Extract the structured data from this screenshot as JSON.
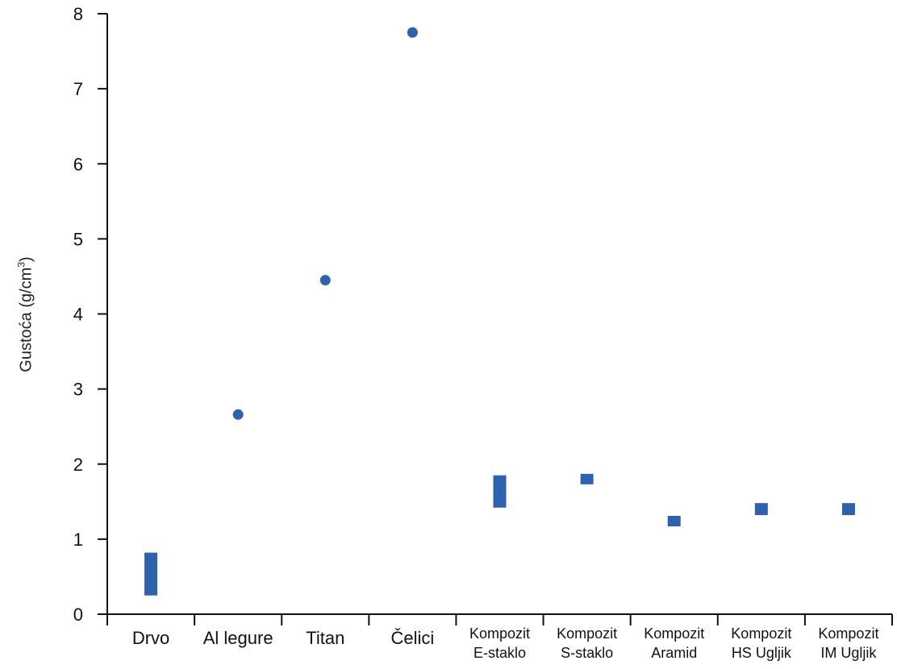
{
  "chart_data": {
    "type": "scatter",
    "ylabel": "Gustoća (g/cm",
    "ylabel_sup": "3",
    "ylabel_suffix": ")",
    "ylim": [
      0,
      8
    ],
    "yticks": [
      "0",
      "1",
      "2",
      "3",
      "4",
      "5",
      "6",
      "7",
      "8"
    ],
    "grid": false,
    "marker_color": "#2e62ad",
    "categories": [
      {
        "label_lines": [
          "Drvo"
        ],
        "kind": "range",
        "min": 0.25,
        "max": 0.82
      },
      {
        "label_lines": [
          "Al legure"
        ],
        "kind": "point",
        "value": 2.66
      },
      {
        "label_lines": [
          "Titan"
        ],
        "kind": "point",
        "value": 4.45
      },
      {
        "label_lines": [
          "Čelici"
        ],
        "kind": "point",
        "value": 7.75
      },
      {
        "label_lines": [
          "Kompozit",
          "E-staklo"
        ],
        "kind": "range",
        "min": 1.42,
        "max": 1.85
      },
      {
        "label_lines": [
          "Kompozit",
          "S-staklo"
        ],
        "kind": "range",
        "min": 1.73,
        "max": 1.87
      },
      {
        "label_lines": [
          "Kompozit",
          "Aramid"
        ],
        "kind": "range",
        "min": 1.17,
        "max": 1.31
      },
      {
        "label_lines": [
          "Kompozit",
          "HS Ugljik"
        ],
        "kind": "range",
        "min": 1.32,
        "max": 1.48
      },
      {
        "label_lines": [
          "Kompozit",
          "IM Ugljik"
        ],
        "kind": "range",
        "min": 1.32,
        "max": 1.48
      }
    ]
  }
}
